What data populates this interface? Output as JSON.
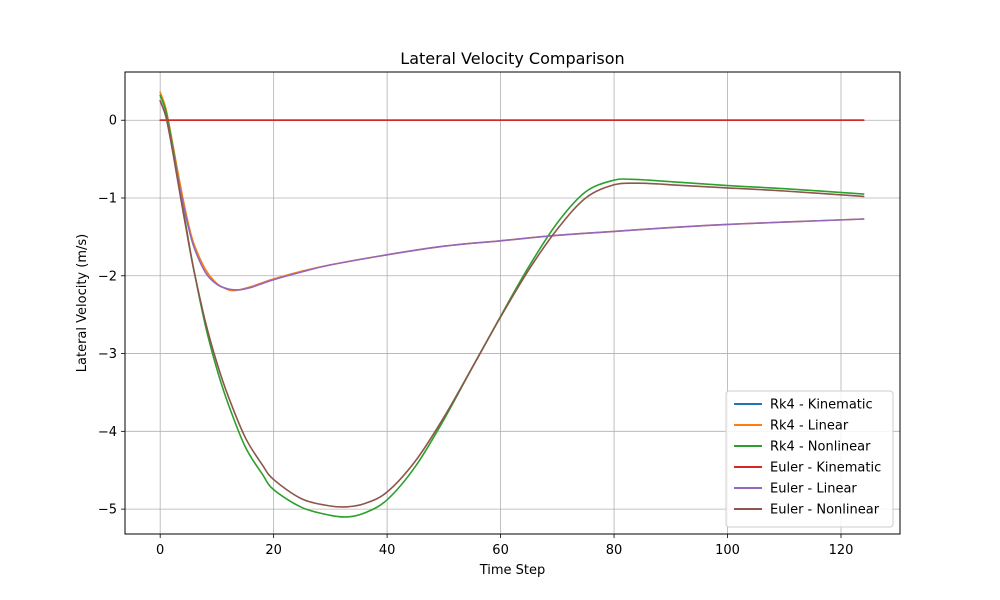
{
  "chart_data": {
    "type": "line",
    "title": "Lateral Velocity Comparison",
    "xlabel": "Time Step",
    "ylabel": "Lateral Velocity (m/s)",
    "xlim": [
      -6.2,
      130.4
    ],
    "ylim": [
      -5.32,
      0.62
    ],
    "x_ticks": [
      0,
      20,
      40,
      60,
      80,
      100,
      120
    ],
    "y_ticks": [
      0,
      -1,
      -2,
      -3,
      -4,
      -5
    ],
    "x_tick_labels": [
      "0",
      "20",
      "40",
      "60",
      "80",
      "100",
      "120"
    ],
    "y_tick_labels": [
      "0",
      "−1",
      "−2",
      "−3",
      "−4",
      "−5"
    ],
    "grid": true,
    "legend_position": "bottom-right",
    "series": [
      {
        "name": "Rk4 - Kinematic",
        "color": "#1f77b4",
        "x": [
          0,
          124
        ],
        "y": [
          0,
          0
        ]
      },
      {
        "name": "Rk4 - Linear",
        "color": "#ff7f0e",
        "x": [
          0,
          1,
          2,
          3,
          4,
          5,
          6,
          8,
          10,
          12,
          13,
          14,
          16,
          18,
          20,
          25,
          30,
          40,
          50,
          60,
          70,
          80,
          90,
          100,
          110,
          124
        ],
        "y": [
          0.36,
          0.15,
          -0.22,
          -0.62,
          -1.0,
          -1.34,
          -1.6,
          -1.92,
          -2.1,
          -2.18,
          -2.19,
          -2.18,
          -2.14,
          -2.09,
          -2.04,
          -1.94,
          -1.86,
          -1.73,
          -1.62,
          -1.55,
          -1.48,
          -1.43,
          -1.38,
          -1.34,
          -1.31,
          -1.27
        ]
      },
      {
        "name": "Rk4 - Nonlinear",
        "color": "#2ca02c",
        "x": [
          0,
          1,
          2,
          3,
          4,
          5,
          6,
          8,
          10,
          12,
          15,
          18,
          20,
          25,
          30,
          33,
          36,
          40,
          45,
          50,
          55,
          60,
          65,
          70,
          75,
          80,
          83,
          86,
          90,
          100,
          110,
          124
        ],
        "y": [
          0.32,
          0.12,
          -0.25,
          -0.68,
          -1.12,
          -1.55,
          -1.95,
          -2.65,
          -3.2,
          -3.65,
          -4.2,
          -4.55,
          -4.75,
          -4.98,
          -5.08,
          -5.1,
          -5.05,
          -4.88,
          -4.45,
          -3.85,
          -3.18,
          -2.52,
          -1.88,
          -1.32,
          -0.92,
          -0.77,
          -0.76,
          -0.77,
          -0.79,
          -0.84,
          -0.88,
          -0.95
        ]
      },
      {
        "name": "Euler - Kinematic",
        "color": "#d62728",
        "x": [
          0,
          124
        ],
        "y": [
          0,
          0
        ]
      },
      {
        "name": "Euler - Linear",
        "color": "#9467bd",
        "x": [
          0,
          1,
          2,
          3,
          4,
          5,
          6,
          8,
          10,
          12,
          14,
          16,
          18,
          20,
          25,
          30,
          40,
          50,
          60,
          70,
          80,
          90,
          100,
          110,
          124
        ],
        "y": [
          0.25,
          0.05,
          -0.3,
          -0.7,
          -1.06,
          -1.38,
          -1.64,
          -1.96,
          -2.11,
          -2.17,
          -2.18,
          -2.15,
          -2.1,
          -2.05,
          -1.95,
          -1.86,
          -1.73,
          -1.62,
          -1.55,
          -1.48,
          -1.43,
          -1.38,
          -1.34,
          -1.31,
          -1.27
        ]
      },
      {
        "name": "Euler - Nonlinear",
        "color": "#8c564b",
        "x": [
          0,
          1,
          2,
          3,
          4,
          5,
          6,
          8,
          10,
          12,
          15,
          18,
          20,
          25,
          30,
          33,
          36,
          40,
          45,
          50,
          55,
          60,
          65,
          70,
          75,
          80,
          84,
          88,
          90,
          100,
          110,
          124
        ],
        "y": [
          0.25,
          0.05,
          -0.32,
          -0.74,
          -1.16,
          -1.57,
          -1.95,
          -2.6,
          -3.12,
          -3.55,
          -4.08,
          -4.43,
          -4.62,
          -4.87,
          -4.96,
          -4.97,
          -4.93,
          -4.78,
          -4.38,
          -3.82,
          -3.18,
          -2.53,
          -1.92,
          -1.4,
          -1.0,
          -0.83,
          -0.81,
          -0.82,
          -0.83,
          -0.87,
          -0.91,
          -0.98
        ]
      }
    ]
  }
}
